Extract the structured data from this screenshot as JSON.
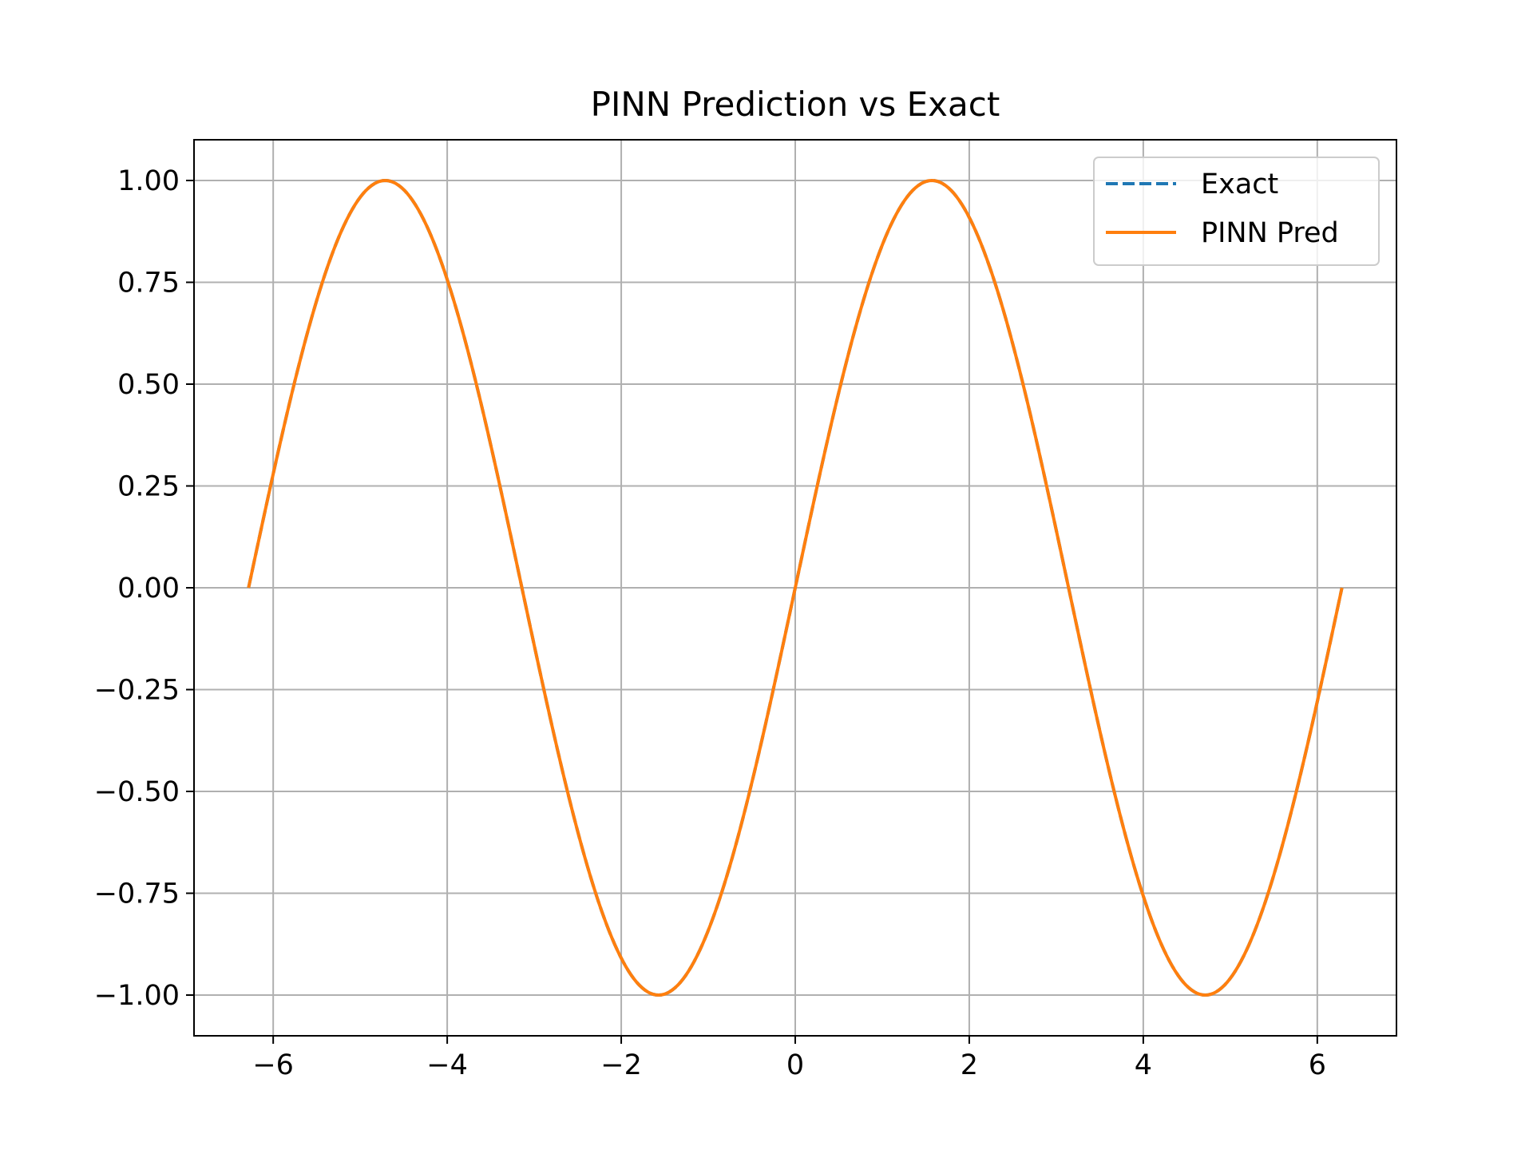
{
  "chart_data": {
    "type": "line",
    "title": "PINN Prediction vs Exact",
    "xlabel": "",
    "ylabel": "",
    "xlim": [
      -6.91,
      6.91
    ],
    "ylim": [
      -1.1,
      1.1
    ],
    "x_ticks": [
      -6,
      -4,
      -2,
      0,
      2,
      4,
      6
    ],
    "x_tick_labels": [
      "−6",
      "−4",
      "−2",
      "0",
      "2",
      "4",
      "6"
    ],
    "y_ticks": [
      1.0,
      0.75,
      0.5,
      0.25,
      0.0,
      -0.25,
      -0.5,
      -0.75,
      -1.0
    ],
    "y_tick_labels": [
      "1.00",
      "0.75",
      "0.50",
      "0.25",
      "0.00",
      "−0.25",
      "−0.50",
      "−0.75",
      "−1.00"
    ],
    "grid": true,
    "legend_position": "top-right",
    "x_range": [
      -6.2832,
      6.2832
    ],
    "series": [
      {
        "name": "Exact",
        "style": "dashed",
        "color": "#1f77b4",
        "x": [
          -6.2832,
          -5.4978,
          -4.7124,
          -3.927,
          -3.1416,
          -2.3562,
          -1.5708,
          -0.7854,
          0.0,
          0.7854,
          1.5708,
          2.3562,
          3.1416,
          3.927,
          4.7124,
          5.4978,
          6.2832
        ],
        "y": [
          0.0,
          0.7071,
          1.0,
          0.7071,
          0.0,
          -0.7071,
          -1.0,
          -0.7071,
          0.0,
          0.7071,
          1.0,
          0.7071,
          0.0,
          -0.7071,
          -1.0,
          -0.7071,
          0.0
        ]
      },
      {
        "name": "PINN Pred",
        "style": "solid",
        "color": "#ff7f0e",
        "x": [
          -6.2832,
          -5.4978,
          -4.7124,
          -3.927,
          -3.1416,
          -2.3562,
          -1.5708,
          -0.7854,
          0.0,
          0.7854,
          1.5708,
          2.3562,
          3.1416,
          3.927,
          4.7124,
          5.4978,
          6.2832
        ],
        "y": [
          0.0,
          0.7071,
          1.0,
          0.7071,
          0.0,
          -0.7071,
          -1.0,
          -0.7071,
          0.0,
          0.7071,
          1.0,
          0.7071,
          0.0,
          -0.7071,
          -1.0,
          -0.7071,
          0.0
        ]
      }
    ]
  }
}
